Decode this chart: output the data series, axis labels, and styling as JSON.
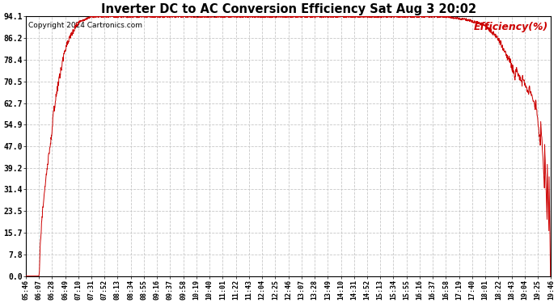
{
  "title": "Inverter DC to AC Conversion Efficiency Sat Aug 3 20:02",
  "copyright_text": "Copyright 2024 Cartronics.com",
  "legend_label": "Efficiency(%)",
  "yticks": [
    0.0,
    7.8,
    15.7,
    23.5,
    31.4,
    39.2,
    47.0,
    54.9,
    62.7,
    70.5,
    78.4,
    86.2,
    94.1
  ],
  "ymin": 0.0,
  "ymax": 94.1,
  "line_color": "#cc0000",
  "bg_color": "#ffffff",
  "grid_color": "#c8c8c8",
  "title_color": "#000000",
  "copyright_color": "#000000",
  "legend_color": "#cc0000",
  "xtick_labels": [
    "05:46",
    "06:07",
    "06:28",
    "06:49",
    "07:10",
    "07:31",
    "07:52",
    "08:13",
    "08:34",
    "08:55",
    "09:16",
    "09:37",
    "09:58",
    "10:19",
    "10:40",
    "11:01",
    "11:22",
    "11:43",
    "12:04",
    "12:25",
    "12:46",
    "13:07",
    "13:28",
    "13:49",
    "14:10",
    "14:31",
    "14:52",
    "15:13",
    "15:34",
    "15:55",
    "16:16",
    "16:37",
    "16:58",
    "17:19",
    "17:40",
    "18:01",
    "18:22",
    "18:43",
    "19:04",
    "19:25",
    "19:46"
  ]
}
